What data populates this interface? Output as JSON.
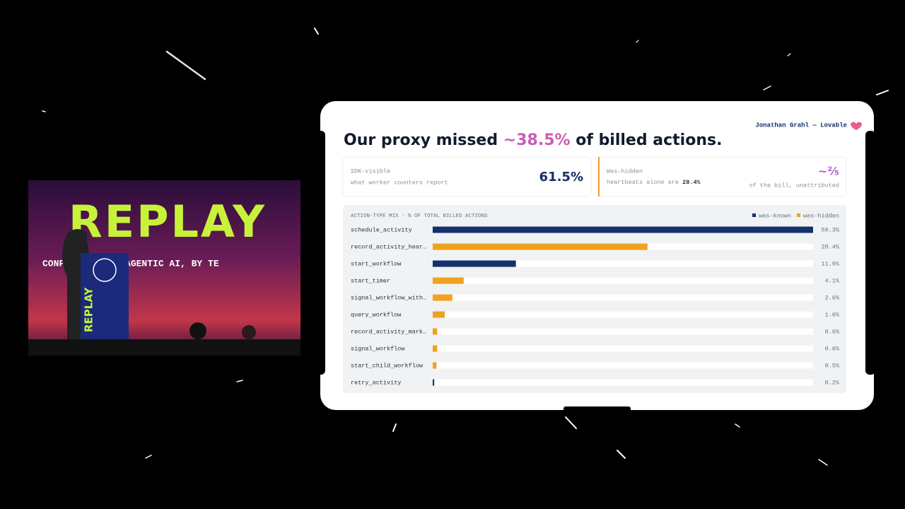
{
  "stage": {
    "banner": "REPLAY",
    "banner_subtitle": "CONFERENCE FOR AGENTIC AI, BY TE",
    "podium": "REPLAY"
  },
  "slide": {
    "author": "Jonathan Grahl — Lovable",
    "title_parts": [
      "Our proxy missed",
      "~38.5%",
      "of billed actions."
    ],
    "cards": [
      {
        "label": "SDK-visible",
        "note": "what worker counters report",
        "value": "61.5%"
      },
      {
        "label": "Was-hidden",
        "note_parts": [
          "heartbeats alone are",
          "28.4%"
        ],
        "value": "~²⁄₅",
        "value_note": "of the bill, unattributed"
      }
    ]
  },
  "chart_data": {
    "type": "bar",
    "orientation": "horizontal",
    "title": "ACTION-TYPE MIX · % OF TOTAL BILLED ACTIONS",
    "categories": [
      "schedule_activity",
      "record_activity_hear…",
      "start_workflow",
      "start_timer",
      "signal_workflow_with…",
      "query_workflow",
      "record_activity_mark…",
      "signal_workflow",
      "start_child_workflow",
      "retry_activity"
    ],
    "xlim": [
      0,
      50.3
    ],
    "legend": "top-right",
    "series": [
      {
        "name": "was-known",
        "color": "#14306b",
        "values": [
          50.3,
          null,
          11.0,
          null,
          null,
          null,
          null,
          null,
          null,
          0.2
        ],
        "value_labels": [
          "50.3%",
          null,
          "11.0%",
          null,
          null,
          null,
          null,
          null,
          null,
          "0.2%"
        ]
      },
      {
        "name": "was-hidden",
        "color": "#f0a21e",
        "values": [
          null,
          28.4,
          null,
          4.1,
          2.6,
          1.6,
          0.6,
          0.6,
          0.5,
          null
        ],
        "value_labels": [
          null,
          "28.4%",
          null,
          "4.1%",
          "2.6%",
          "1.6%",
          "0.6%",
          "0.6%",
          "0.5%",
          null
        ]
      }
    ]
  }
}
